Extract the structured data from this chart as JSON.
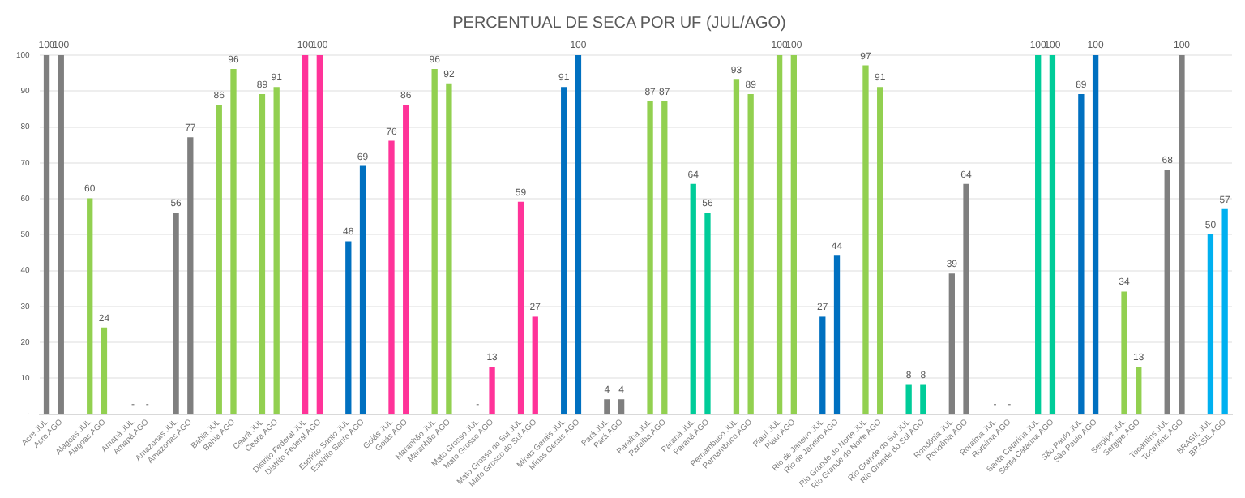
{
  "chart_data": {
    "type": "bar",
    "title": "PERCENTUAL DE SECA POR UF (JUL/AGO)",
    "categories": [
      "Acre JUL",
      "Acre AGO",
      null,
      "Alagoas JUL",
      "Alagoas AGO",
      null,
      "Amapá JUL",
      "Amapá AGO",
      null,
      "Amazonas JUL",
      "Amazonas AGO",
      null,
      "Bahia JUL",
      "Bahia AGO",
      null,
      "Ceará JUL",
      "Ceará AGO",
      null,
      "Distrito Federal JUL",
      "Distrito Federal AGO",
      null,
      "Espírito Santo JUL",
      "Espírito Santo AGO",
      null,
      "Goiás JUL",
      "Goiás AGO",
      null,
      "Maranhão JUL",
      "Maranhão AGO",
      null,
      "Mato Grosso JUL",
      "Mato Grosso AGO",
      null,
      "Mato Grosso do Sul JUL",
      "Mato Grosso do Sul AGO",
      null,
      "Minas Gerais JUL",
      "Minas Gerais AGO",
      null,
      "Pará JUL",
      "Pará AGO",
      null,
      "Paraíba JUL",
      "Paraíba AGO",
      null,
      "Paraná JUL",
      "Paraná AGO",
      null,
      "Pernambuco JUL",
      "Pernambuco AGO",
      null,
      "Piauí JUL",
      "Piauí AGO",
      null,
      "Rio de Janeiro JUL",
      "Rio de Janeiro AGO",
      null,
      "Rio Grande do Norte JUL",
      "Rio Grande do Norte AGO",
      null,
      "Rio Grande do Sul JUL",
      "Rio Grande do Sul AGO",
      null,
      "Rondônia JUL",
      "Rondônia AGO",
      null,
      "Roraima JUL",
      "Roraima AGO",
      null,
      "Santa Catarina JUL",
      "Santa Catarina AGO",
      null,
      "São Paulo JUL",
      "São Paulo AGO",
      null,
      "Sergipe JUL",
      "Sergipe AGO",
      null,
      "Tocantins JUL",
      "Tocantins AGO",
      null,
      "BRASIL JUL",
      "BRASIL AGO"
    ],
    "values": [
      100,
      100,
      null,
      60,
      24,
      null,
      0,
      0,
      null,
      56,
      77,
      null,
      86,
      96,
      null,
      89,
      91,
      null,
      100,
      100,
      null,
      48,
      69,
      null,
      76,
      86,
      null,
      96,
      92,
      null,
      0,
      13,
      null,
      59,
      27,
      null,
      91,
      100,
      null,
      4,
      4,
      null,
      87,
      87,
      null,
      64,
      56,
      null,
      93,
      89,
      null,
      100,
      100,
      null,
      27,
      44,
      null,
      97,
      91,
      null,
      8,
      8,
      null,
      39,
      64,
      null,
      0,
      0,
      null,
      100,
      100,
      null,
      89,
      100,
      null,
      34,
      13,
      null,
      68,
      100,
      null,
      50,
      57
    ],
    "value_labels": [
      "100",
      "100",
      null,
      "60",
      "24",
      null,
      "-",
      "-",
      null,
      "56",
      "77",
      null,
      "86",
      "96",
      null,
      "89",
      "91",
      null,
      "100",
      "100",
      null,
      "48",
      "69",
      null,
      "76",
      "86",
      null,
      "96",
      "92",
      null,
      "-",
      "13",
      null,
      "59",
      "27",
      null,
      "91",
      "100",
      null,
      "4",
      "4",
      null,
      "87",
      "87",
      null,
      "64",
      "56",
      null,
      "93",
      "89",
      null,
      "100",
      "100",
      null,
      "27",
      "44",
      null,
      "97",
      "91",
      null,
      "8",
      "8",
      null,
      "39",
      "64",
      null,
      "-",
      "-",
      null,
      "100",
      "100",
      null,
      "89",
      "100",
      null,
      "34",
      "13",
      null,
      "68",
      "100",
      null,
      "50",
      "57"
    ],
    "colors": [
      "#7f7f7f",
      "#7f7f7f",
      null,
      "#92d050",
      "#92d050",
      null,
      "#7f7f7f",
      "#7f7f7f",
      null,
      "#7f7f7f",
      "#7f7f7f",
      null,
      "#92d050",
      "#92d050",
      null,
      "#92d050",
      "#92d050",
      null,
      "#ff3399",
      "#ff3399",
      null,
      "#0070c0",
      "#0070c0",
      null,
      "#ff3399",
      "#ff3399",
      null,
      "#92d050",
      "#92d050",
      null,
      "#ff3399",
      "#ff3399",
      null,
      "#ff3399",
      "#ff3399",
      null,
      "#0070c0",
      "#0070c0",
      null,
      "#7f7f7f",
      "#7f7f7f",
      null,
      "#92d050",
      "#92d050",
      null,
      "#00cc99",
      "#00cc99",
      null,
      "#92d050",
      "#92d050",
      null,
      "#92d050",
      "#92d050",
      null,
      "#0070c0",
      "#0070c0",
      null,
      "#92d050",
      "#92d050",
      null,
      "#00cc99",
      "#00cc99",
      null,
      "#7f7f7f",
      "#7f7f7f",
      null,
      "#7f7f7f",
      "#7f7f7f",
      null,
      "#00cc99",
      "#00cc99",
      null,
      "#0070c0",
      "#0070c0",
      null,
      "#92d050",
      "#92d050",
      null,
      "#7f7f7f",
      "#7f7f7f",
      null,
      "#00b0f0",
      "#00b0f0"
    ],
    "ylim": [
      0,
      100
    ],
    "yticks": [
      {
        "value": 0,
        "label": "-"
      },
      10,
      20,
      30,
      40,
      50,
      60,
      70,
      80,
      90,
      100
    ],
    "grid": "y",
    "legend": false
  }
}
